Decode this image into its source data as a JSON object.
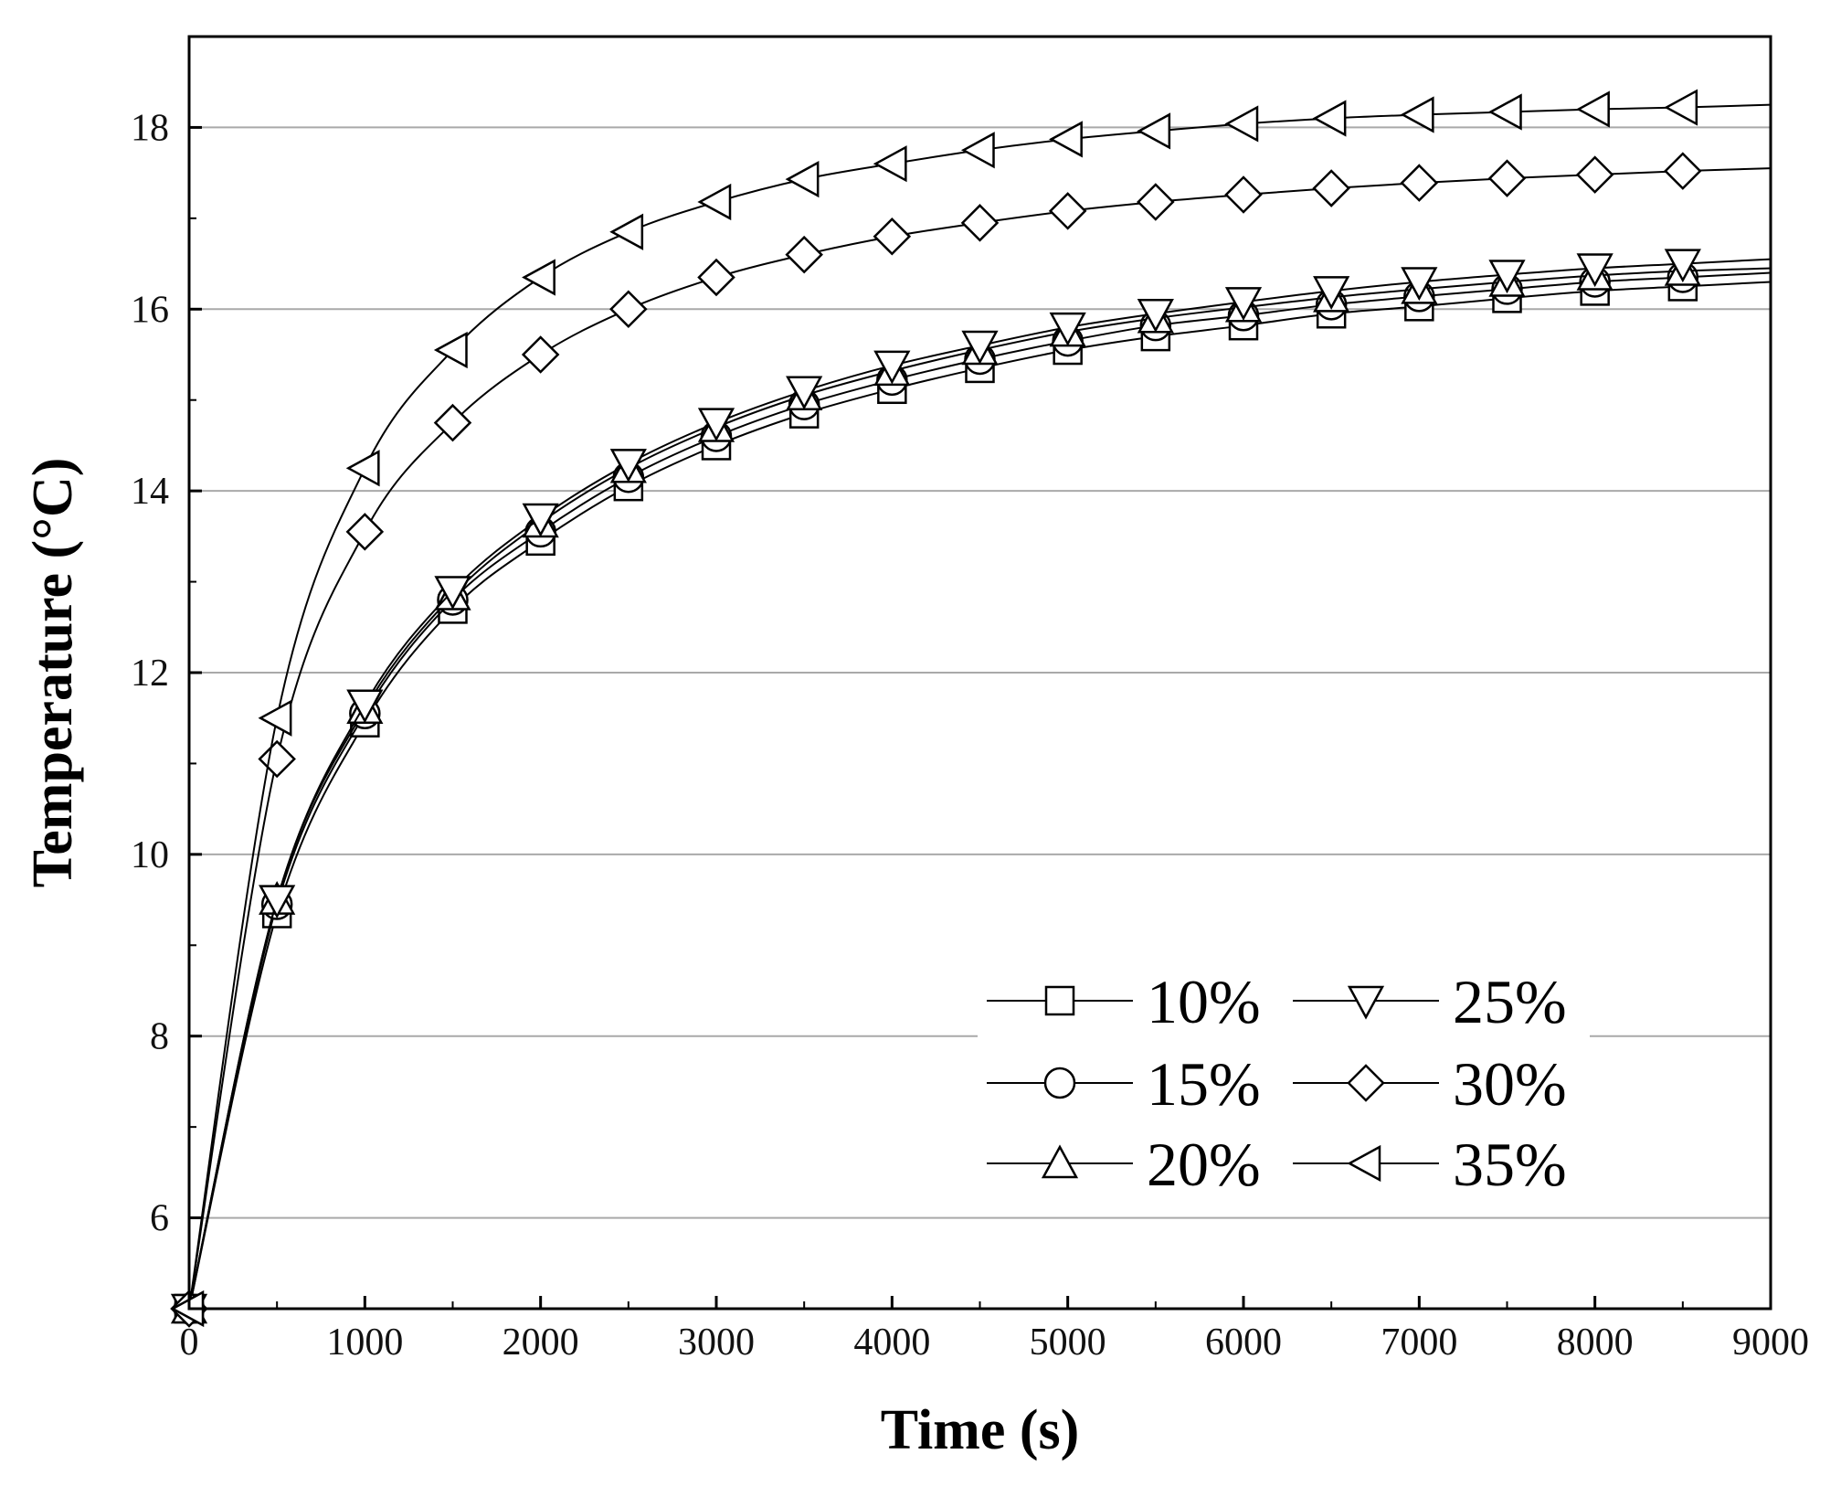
{
  "chart_data": {
    "type": "line",
    "title": "",
    "xlabel": "Time (s)",
    "ylabel": "Temperature (°C)",
    "xlim": [
      0,
      9000
    ],
    "ylim": [
      5,
      19
    ],
    "xticks": [
      0,
      1000,
      2000,
      3000,
      4000,
      5000,
      6000,
      7000,
      8000,
      9000
    ],
    "yticks": [
      6,
      8,
      10,
      12,
      14,
      16,
      18
    ],
    "xtick_labels": [
      "0",
      "1000",
      "2000",
      "3000",
      "4000",
      "5000",
      "6000",
      "7000",
      "8000",
      "9000"
    ],
    "ytick_labels": [
      "6",
      "8",
      "10",
      "12",
      "14",
      "16",
      "18"
    ],
    "grid": "horizontal",
    "legend_position": "lower-right",
    "x": [
      0,
      500,
      1000,
      1500,
      2000,
      2500,
      3000,
      3500,
      4000,
      4500,
      5000,
      5500,
      6000,
      6500,
      7000,
      7500,
      8000,
      8500
    ],
    "series": [
      {
        "name": "10%",
        "marker": "square",
        "end_value": 16.3,
        "values": [
          5.0,
          9.35,
          11.45,
          12.7,
          13.45,
          14.05,
          14.5,
          14.85,
          15.12,
          15.35,
          15.55,
          15.7,
          15.82,
          15.95,
          16.03,
          16.12,
          16.2,
          16.25
        ]
      },
      {
        "name": "15%",
        "marker": "circle",
        "end_value": 16.4,
        "values": [
          5.0,
          9.45,
          11.55,
          12.8,
          13.55,
          14.15,
          14.6,
          14.95,
          15.22,
          15.45,
          15.65,
          15.82,
          15.93,
          16.05,
          16.14,
          16.22,
          16.3,
          16.35
        ]
      },
      {
        "name": "20%",
        "marker": "triangle-up",
        "end_value": 16.45,
        "values": [
          5.0,
          9.5,
          11.6,
          12.85,
          13.65,
          14.25,
          14.7,
          15.05,
          15.32,
          15.55,
          15.75,
          15.9,
          16.02,
          16.13,
          16.22,
          16.3,
          16.37,
          16.42
        ]
      },
      {
        "name": "25%",
        "marker": "triangle-down",
        "end_value": 16.55,
        "values": [
          5.0,
          9.5,
          11.65,
          12.9,
          13.7,
          14.3,
          14.75,
          15.1,
          15.38,
          15.6,
          15.8,
          15.95,
          16.08,
          16.2,
          16.3,
          16.38,
          16.45,
          16.5
        ]
      },
      {
        "name": "30%",
        "marker": "diamond",
        "end_value": 17.55,
        "values": [
          5.0,
          11.05,
          13.55,
          14.75,
          15.5,
          16.0,
          16.35,
          16.6,
          16.8,
          16.95,
          17.08,
          17.18,
          17.26,
          17.33,
          17.39,
          17.44,
          17.48,
          17.52
        ]
      },
      {
        "name": "35%",
        "marker": "triangle-left",
        "end_value": 18.25,
        "values": [
          5.0,
          11.5,
          14.25,
          15.55,
          16.35,
          16.85,
          17.18,
          17.43,
          17.6,
          17.75,
          17.87,
          17.96,
          18.04,
          18.1,
          18.14,
          18.17,
          18.2,
          18.22
        ]
      }
    ],
    "legend_columns": [
      [
        "10%",
        "15%",
        "20%"
      ],
      [
        "25%",
        "30%",
        "35%"
      ]
    ]
  }
}
